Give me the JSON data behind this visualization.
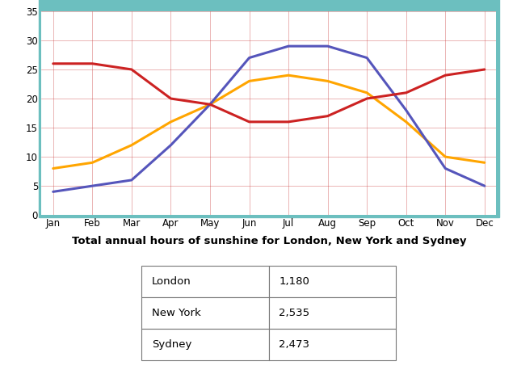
{
  "months": [
    "Jan",
    "Feb",
    "Mar",
    "Apr",
    "May",
    "Jun",
    "Jul",
    "Aug",
    "Sep",
    "Oct",
    "Nov",
    "Dec"
  ],
  "london": [
    8,
    9,
    12,
    16,
    19,
    23,
    24,
    23,
    21,
    16,
    10,
    9
  ],
  "new_york": [
    4,
    5,
    6,
    12,
    19,
    27,
    29,
    29,
    27,
    18,
    8,
    5
  ],
  "sydney": [
    26,
    26,
    25,
    20,
    19,
    16,
    16,
    17,
    20,
    21,
    24,
    25
  ],
  "london_color": "#FFA500",
  "new_york_color": "#5555BB",
  "sydney_color": "#CC2222",
  "teal_color": "#6CBFBF",
  "plot_bg_color": "#FFFFFF",
  "grid_color": "#CC4444",
  "ylim": [
    0,
    35
  ],
  "yticks": [
    0,
    5,
    10,
    15,
    20,
    25,
    30,
    35
  ],
  "table_title": "Total annual hours of sunshine for London, New York and Sydney",
  "table_data": [
    [
      "London",
      "1,180"
    ],
    [
      "New York",
      "2,535"
    ],
    [
      "Sydney",
      "2,473"
    ]
  ],
  "legend_labels": [
    "London",
    "New York",
    "Sydney"
  ],
  "linewidth": 2.2
}
